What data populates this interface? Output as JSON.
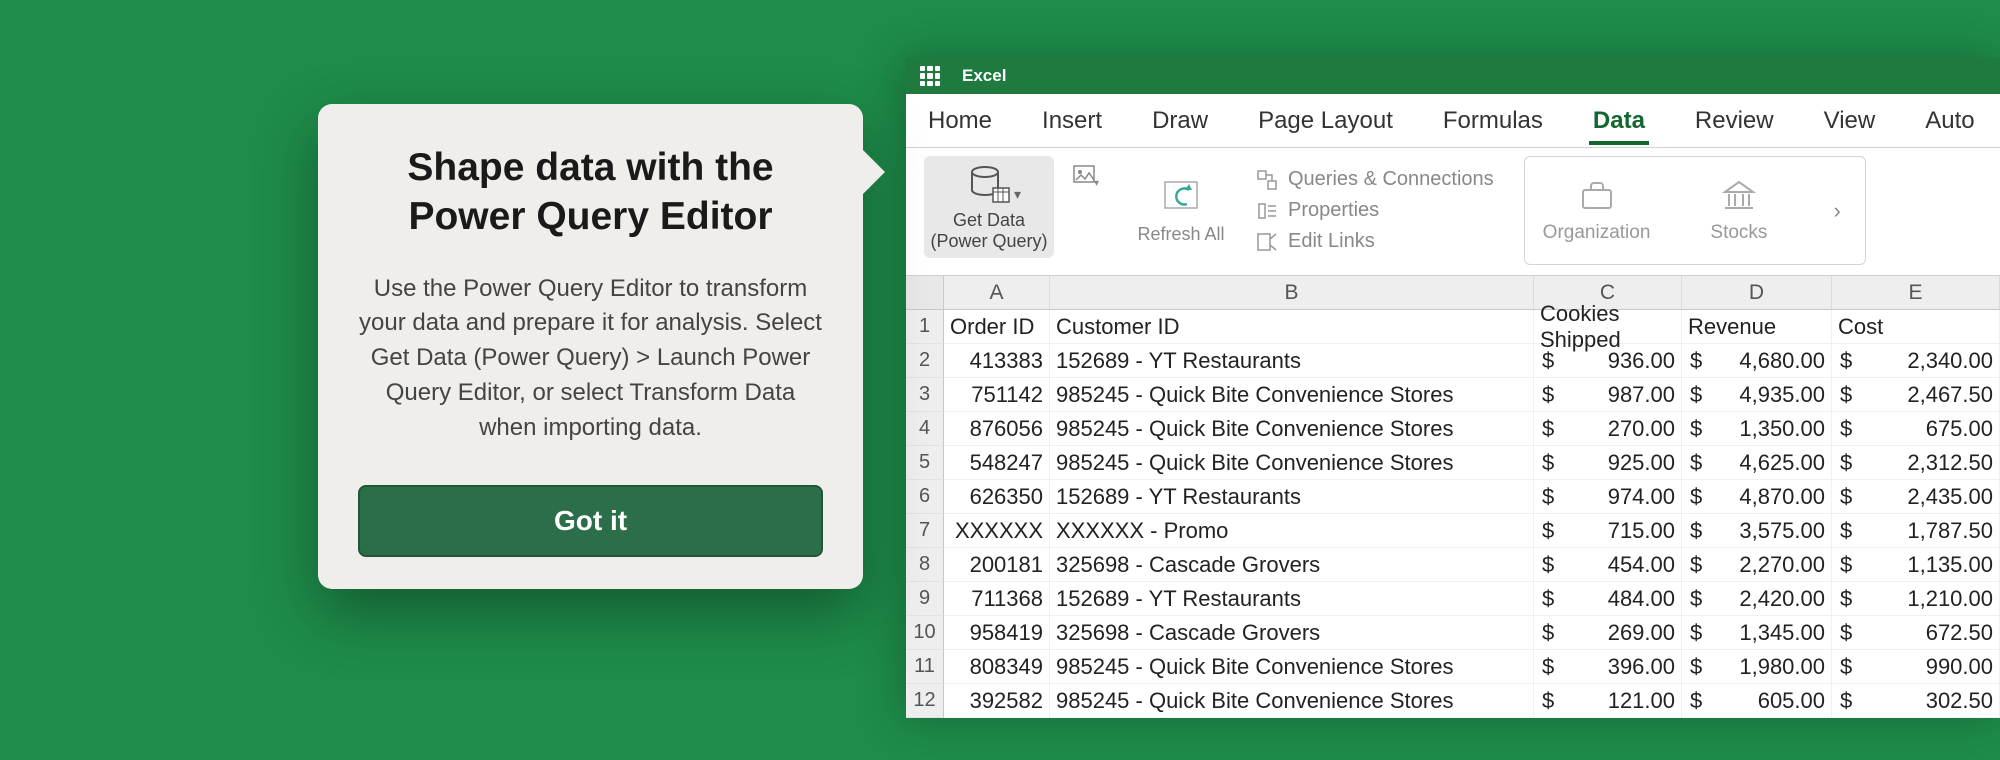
{
  "callout": {
    "title": "Shape data with the Power Query Editor",
    "body": "Use the Power Query Editor to transform your data and prepare it for analysis. Select Get Data (Power Query) > Launch Power Query Editor, or select Transform Data when importing data.",
    "button": "Got it"
  },
  "app": {
    "name": "Excel"
  },
  "tabs": [
    "Home",
    "Insert",
    "Draw",
    "Page Layout",
    "Formulas",
    "Data",
    "Review",
    "View",
    "Auto"
  ],
  "activeTab": "Data",
  "ribbon": {
    "getData": "Get Data (Power Query)",
    "refresh": "Refresh All",
    "queries": "Queries & Connections",
    "properties": "Properties",
    "editLinks": "Edit Links",
    "organization": "Organization",
    "stocks": "Stocks"
  },
  "colLetters": [
    "A",
    "B",
    "C",
    "D",
    "E"
  ],
  "header": {
    "A": "Order ID",
    "B": "Customer ID",
    "C": "Cookies Shipped",
    "D": "Revenue",
    "E": "Cost"
  },
  "rows": [
    {
      "A": "413383",
      "B": "152689 - YT Restaurants",
      "C": "936.00",
      "D": "4,680.00",
      "E": "2,340.00"
    },
    {
      "A": "751142",
      "B": "985245 - Quick Bite Convenience Stores",
      "C": "987.00",
      "D": "4,935.00",
      "E": "2,467.50"
    },
    {
      "A": "876056",
      "B": "985245 - Quick Bite Convenience Stores",
      "C": "270.00",
      "D": "1,350.00",
      "E": "675.00"
    },
    {
      "A": "548247",
      "B": "985245 - Quick Bite Convenience Stores",
      "C": "925.00",
      "D": "4,625.00",
      "E": "2,312.50"
    },
    {
      "A": "626350",
      "B": "152689 - YT Restaurants",
      "C": "974.00",
      "D": "4,870.00",
      "E": "2,435.00"
    },
    {
      "A": "XXXXXX",
      "B": "XXXXXX - Promo",
      "C": "715.00",
      "D": "3,575.00",
      "E": "1,787.50"
    },
    {
      "A": "200181",
      "B": "325698 - Cascade Grovers",
      "C": "454.00",
      "D": "2,270.00",
      "E": "1,135.00"
    },
    {
      "A": "711368",
      "B": "152689 - YT Restaurants",
      "C": "484.00",
      "D": "2,420.00",
      "E": "1,210.00"
    },
    {
      "A": "958419",
      "B": "325698 - Cascade Grovers",
      "C": "269.00",
      "D": "1,345.00",
      "E": "672.50"
    },
    {
      "A": "808349",
      "B": "985245 - Quick Bite Convenience Stores",
      "C": "396.00",
      "D": "1,980.00",
      "E": "990.00"
    },
    {
      "A": "392582",
      "B": "985245 - Quick Bite Convenience Stores",
      "C": "121.00",
      "D": "605.00",
      "E": "302.50"
    }
  ],
  "rowNumbers": [
    "1",
    "2",
    "3",
    "4",
    "5",
    "6",
    "7",
    "8",
    "9",
    "10",
    "11",
    "12"
  ],
  "colors": {
    "bg": "#1e8c4a",
    "titlebar": "#1e7a3e",
    "accent": "#14662f",
    "callout_bg": "#f0eeeb",
    "callout_btn": "#2c6e49"
  }
}
